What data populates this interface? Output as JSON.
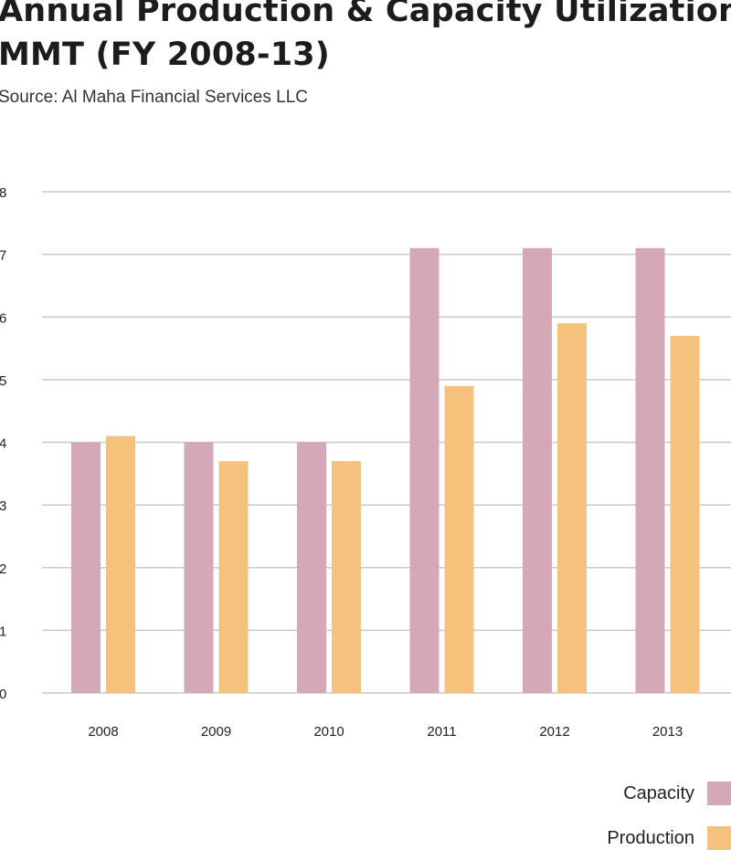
{
  "title_lines": [
    "Annual Production & Capacity Utilization",
    "MMT (FY 2008-13)"
  ],
  "subtitle": "Source: Al Maha Financial Services LLC",
  "colors": {
    "capacity": "#d4a8b7",
    "production": "#f5c27e",
    "grid": "#c9c9c9"
  },
  "chart_data": {
    "type": "bar",
    "categories": [
      "2008",
      "2009",
      "2010",
      "2011",
      "2012",
      "2013"
    ],
    "series": [
      {
        "name": "Capacity",
        "values": [
          4,
          4,
          4,
          7.1,
          7.1,
          7.1
        ]
      },
      {
        "name": "Production",
        "values": [
          4.1,
          3.7,
          3.7,
          4.9,
          5.9,
          5.7
        ]
      }
    ],
    "ylim": [
      0,
      8
    ],
    "yticks": [
      "0",
      "1",
      "2",
      "3",
      "4",
      "5",
      "6",
      "7",
      "8"
    ],
    "grid": true,
    "legend_position": "bottom-right"
  }
}
